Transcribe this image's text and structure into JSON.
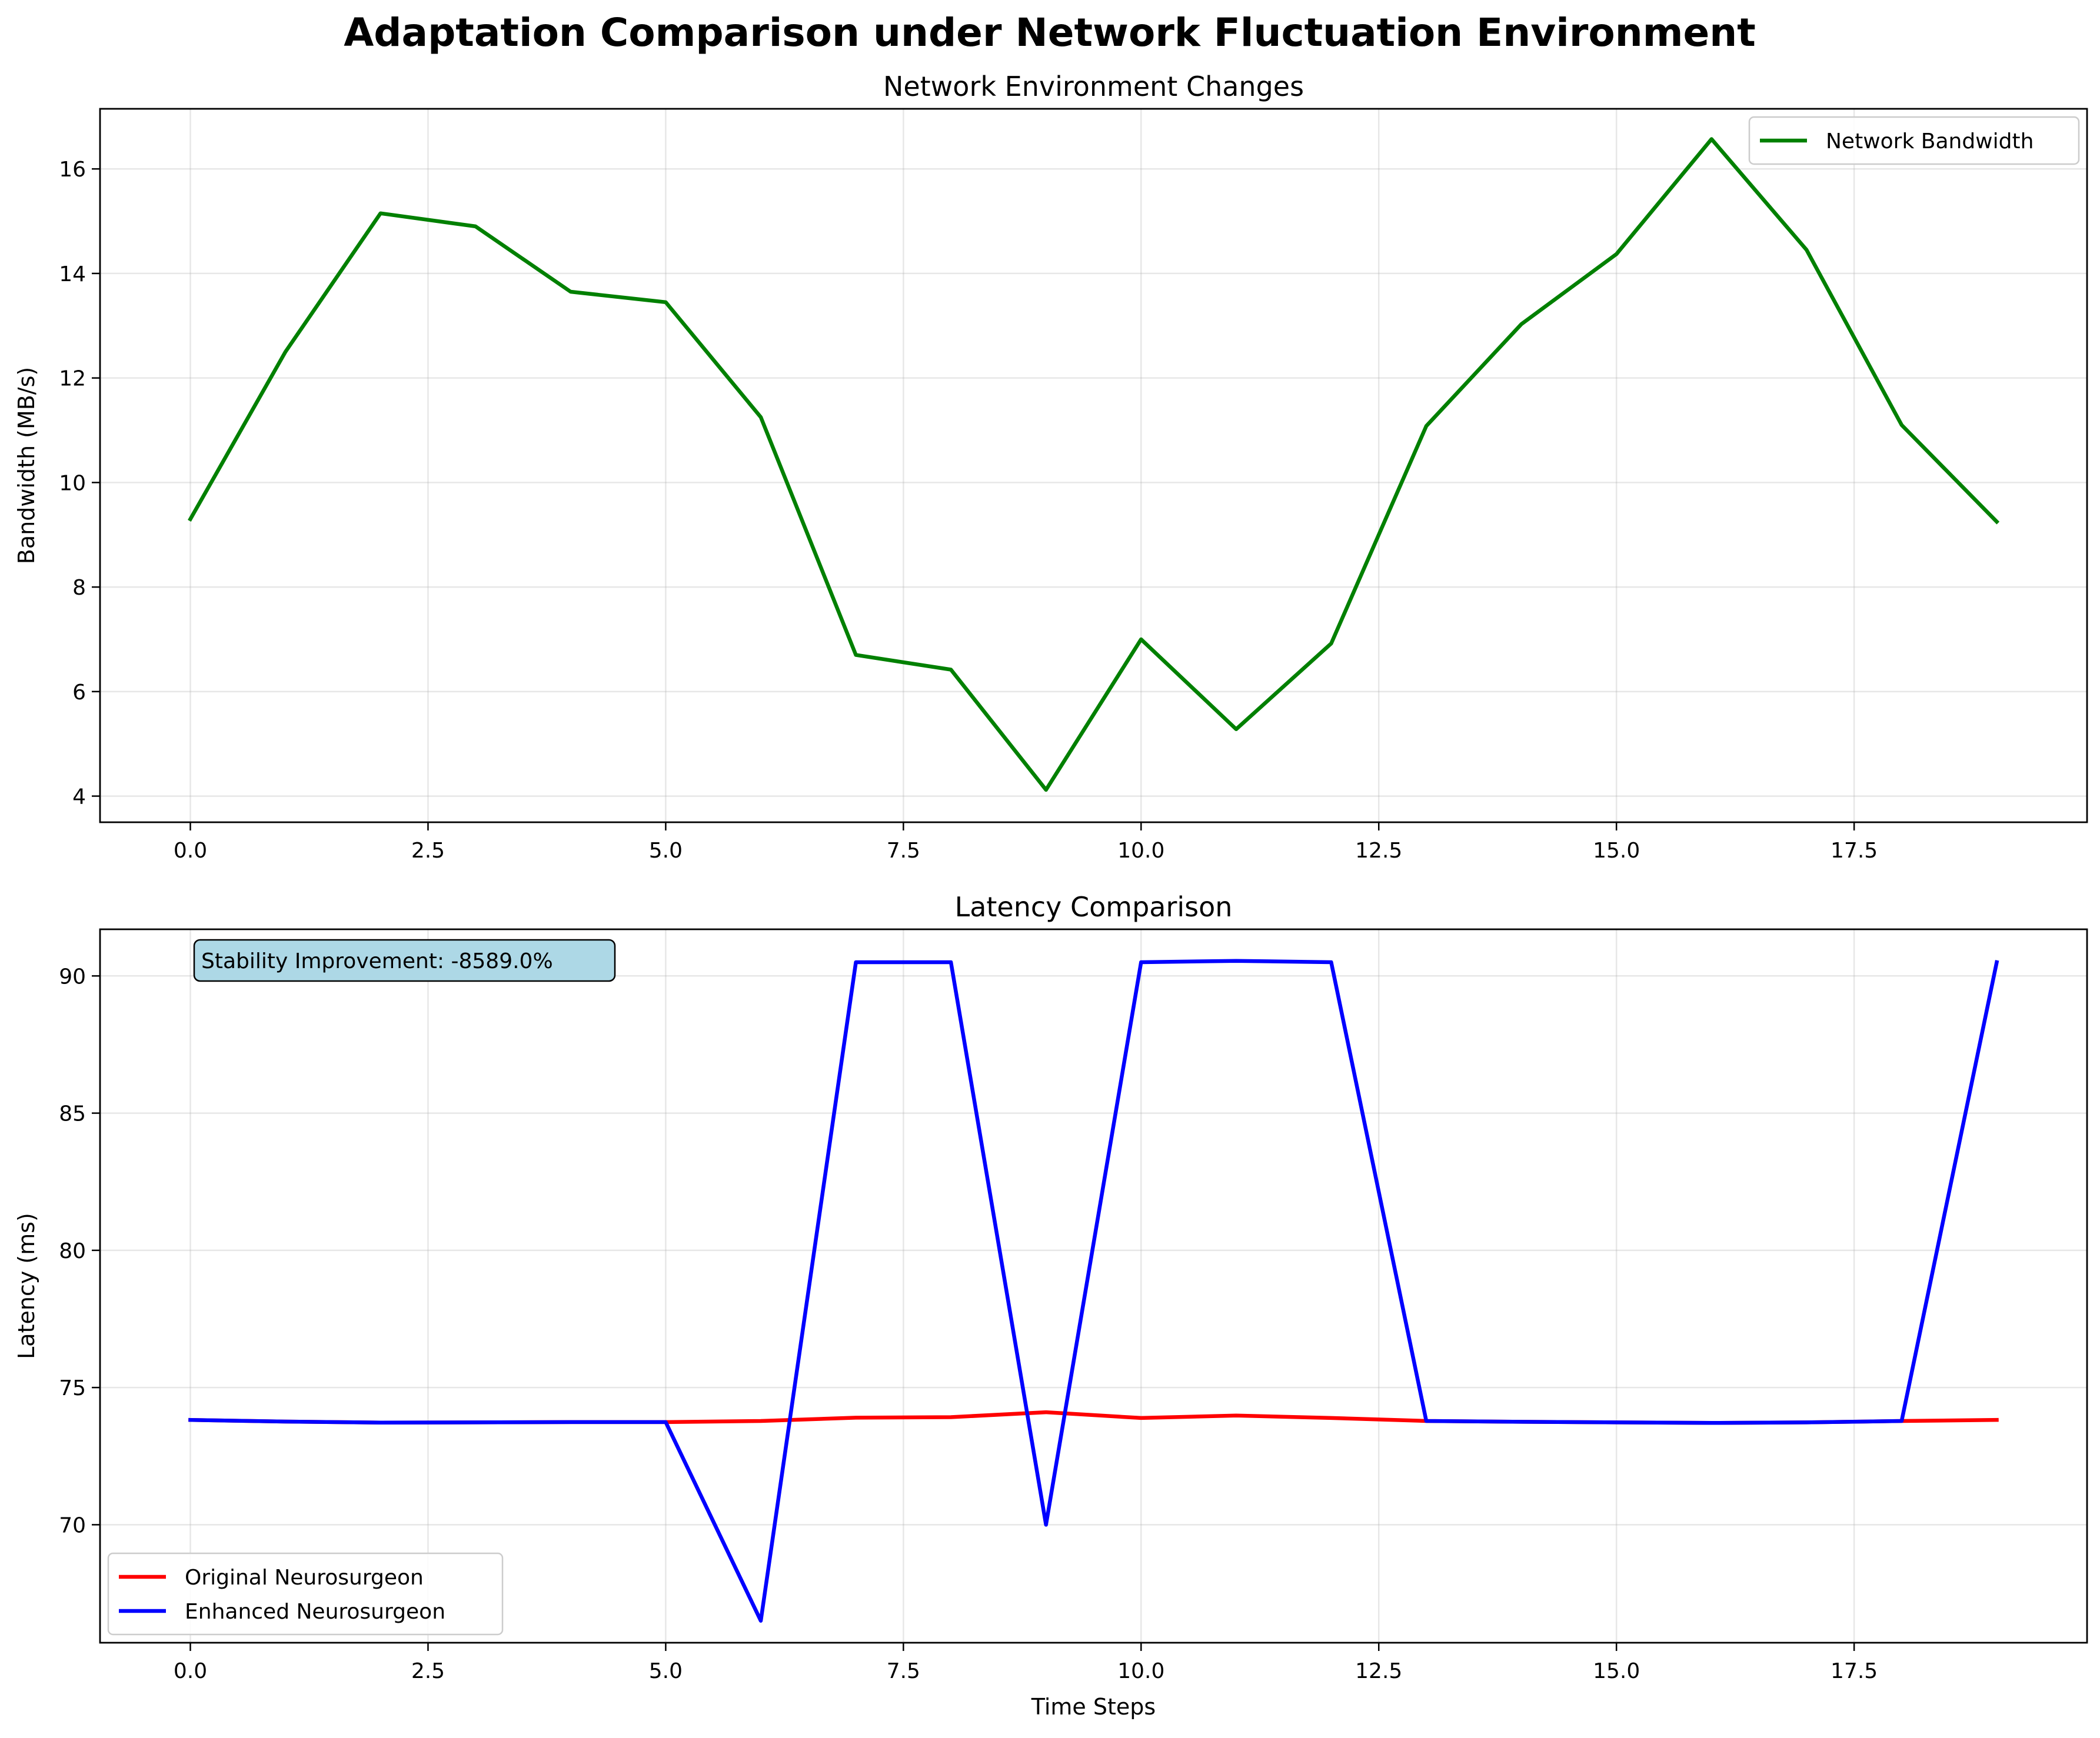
{
  "figure": {
    "suptitle": "Adaptation Comparison under Network Fluctuation Environment"
  },
  "chart_data": [
    {
      "type": "line",
      "title": "Network Environment Changes",
      "xlabel": "",
      "ylabel": "Bandwidth (MB/s)",
      "xlim": [
        -0.95,
        19.95
      ],
      "ylim": [
        3.5,
        17.15
      ],
      "xticks": [
        0.0,
        2.5,
        5.0,
        7.5,
        10.0,
        12.5,
        15.0,
        17.5
      ],
      "xtick_labels": [
        "0.0",
        "2.5",
        "5.0",
        "7.5",
        "10.0",
        "12.5",
        "15.0",
        "17.5"
      ],
      "yticks": [
        4,
        6,
        8,
        10,
        12,
        14,
        16
      ],
      "ytick_labels": [
        "4",
        "6",
        "8",
        "10",
        "12",
        "14",
        "16"
      ],
      "grid": true,
      "legend_position": "upper right",
      "x": [
        0,
        1,
        2,
        3,
        4,
        5,
        6,
        7,
        8,
        9,
        10,
        11,
        12,
        13,
        14,
        15,
        16,
        17,
        18,
        19
      ],
      "series": [
        {
          "name": "Network Bandwidth",
          "color": "#008000",
          "values": [
            9.3,
            12.5,
            15.15,
            14.9,
            13.65,
            13.45,
            11.25,
            6.7,
            6.42,
            4.12,
            7.0,
            5.28,
            6.92,
            11.08,
            13.03,
            14.37,
            16.57,
            14.45,
            11.1,
            9.25
          ]
        }
      ]
    },
    {
      "type": "line",
      "title": "Latency Comparison",
      "xlabel": "Time Steps",
      "ylabel": "Latency (ms)",
      "xlim": [
        -0.95,
        19.95
      ],
      "ylim": [
        65.7,
        91.7
      ],
      "xticks": [
        0.0,
        2.5,
        5.0,
        7.5,
        10.0,
        12.5,
        15.0,
        17.5
      ],
      "xtick_labels": [
        "0.0",
        "2.5",
        "5.0",
        "7.5",
        "10.0",
        "12.5",
        "15.0",
        "17.5"
      ],
      "yticks": [
        70,
        75,
        80,
        85,
        90
      ],
      "ytick_labels": [
        "70",
        "75",
        "80",
        "85",
        "90"
      ],
      "grid": true,
      "legend_position": "lower left",
      "annotation": "Stability Improvement: -8589.0%",
      "annotation_bg": "#add8e6",
      "x": [
        0,
        1,
        2,
        3,
        4,
        5,
        6,
        7,
        8,
        9,
        10,
        11,
        12,
        13,
        14,
        15,
        16,
        17,
        18,
        19
      ],
      "series": [
        {
          "name": "Original Neurosurgeon",
          "color": "#ff0000",
          "values": [
            73.82,
            73.76,
            73.72,
            73.73,
            73.74,
            73.74,
            73.78,
            73.9,
            73.92,
            74.1,
            73.89,
            73.98,
            73.89,
            73.78,
            73.75,
            73.73,
            73.71,
            73.73,
            73.78,
            73.82
          ]
        },
        {
          "name": "Enhanced Neurosurgeon",
          "color": "#0000ff",
          "values": [
            73.82,
            73.76,
            73.72,
            73.73,
            73.74,
            73.74,
            66.5,
            90.5,
            90.5,
            70.0,
            90.5,
            90.55,
            90.5,
            73.78,
            73.75,
            73.73,
            73.71,
            73.73,
            73.78,
            90.5
          ]
        }
      ]
    }
  ]
}
